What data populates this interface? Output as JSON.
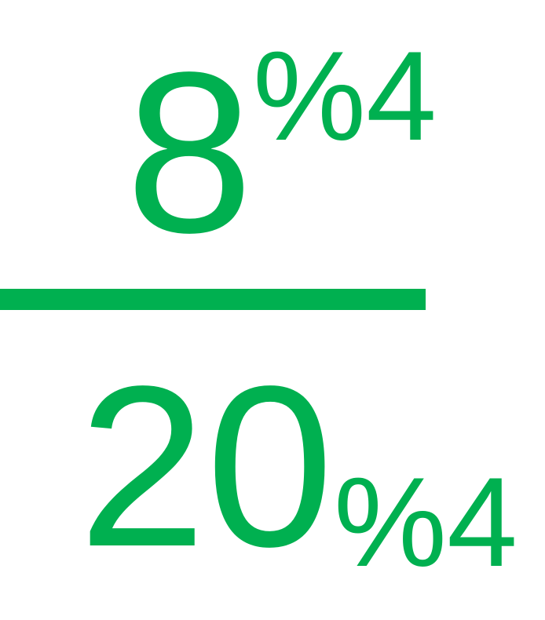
{
  "expression": {
    "numerator": {
      "base": "8",
      "superscript": "%4"
    },
    "denominator": {
      "base": "20",
      "subscript": "%4"
    }
  },
  "colors": {
    "text": "#00b050",
    "bar": "#00b050",
    "background": "#ffffff"
  }
}
